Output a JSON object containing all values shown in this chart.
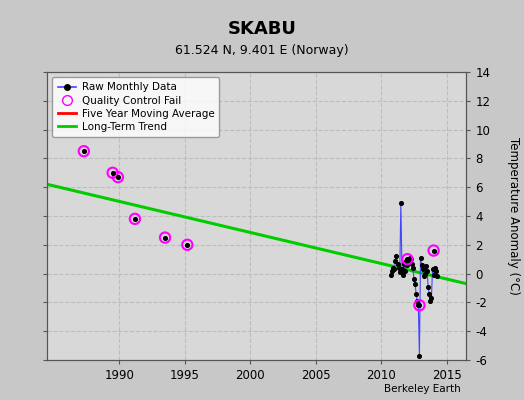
{
  "title": "SKABU",
  "subtitle": "61.524 N, 9.401 E (Norway)",
  "ylabel": "Temperature Anomaly (°C)",
  "credit": "Berkeley Earth",
  "xlim": [
    1984.5,
    2016.5
  ],
  "ylim": [
    -6,
    14
  ],
  "yticks": [
    -6,
    -4,
    -2,
    0,
    2,
    4,
    6,
    8,
    10,
    12,
    14
  ],
  "xticks": [
    1990,
    1995,
    2000,
    2005,
    2010,
    2015
  ],
  "bg_color": "#c8c8c8",
  "plot_bg_color": "#d8d8d8",
  "grid_color": "#bbbbbb",
  "raw_monthly": {
    "x": [
      2010.75,
      2010.833,
      2010.917,
      2011.0,
      2011.083,
      2011.167,
      2011.25,
      2011.333,
      2011.417,
      2011.5,
      2011.583,
      2011.667,
      2011.75,
      2011.833,
      2011.917,
      2012.0,
      2012.083,
      2012.167,
      2012.25,
      2012.333,
      2012.417,
      2012.5,
      2012.583,
      2012.667,
      2012.75,
      2012.833,
      2012.917,
      2013.0,
      2013.083,
      2013.167,
      2013.25,
      2013.333,
      2013.417,
      2013.5,
      2013.583,
      2013.667,
      2013.75,
      2013.833,
      2013.917,
      2014.0,
      2014.083,
      2014.167,
      2014.25
    ],
    "y": [
      -0.1,
      0.2,
      0.4,
      0.3,
      0.9,
      1.2,
      0.7,
      0.4,
      0.1,
      4.9,
      0.3,
      -0.1,
      0.7,
      0.2,
      0.9,
      0.6,
      0.8,
      1.1,
      1.0,
      0.7,
      0.4,
      -0.4,
      -0.7,
      -1.4,
      -1.9,
      -2.2,
      -5.7,
      1.1,
      0.6,
      0.3,
      -0.2,
      0.0,
      0.5,
      0.2,
      -0.9,
      -1.4,
      -1.9,
      -1.7,
      0.3,
      -0.1,
      0.4,
      0.2,
      -0.2
    ]
  },
  "qc_fail": {
    "x": [
      1987.3,
      1989.5,
      1989.9,
      1991.2,
      1993.5,
      1995.2,
      2012.0,
      2012.917,
      2014.0
    ],
    "y": [
      8.5,
      7.0,
      6.7,
      3.8,
      2.5,
      2.0,
      1.0,
      -2.2,
      1.6
    ]
  },
  "long_term_trend": {
    "x": [
      1984.5,
      2016.5
    ],
    "y": [
      6.2,
      -0.7
    ]
  }
}
